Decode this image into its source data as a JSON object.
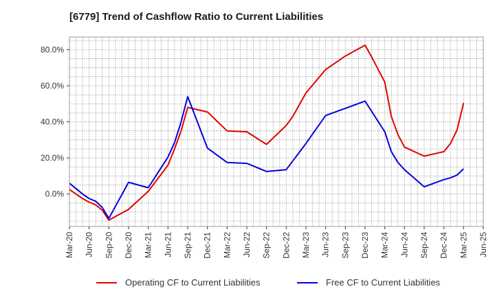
{
  "chart_data": {
    "type": "line",
    "title": "[6779]  Trend of Cashflow Ratio to Current Liabilities",
    "xlabel": "",
    "ylabel": "",
    "x_tick_labels": [
      "Mar-20",
      "Jun-20",
      "Sep-20",
      "Dec-20",
      "Mar-21",
      "Jun-21",
      "Sep-21",
      "Dec-21",
      "Mar-22",
      "Jun-22",
      "Sep-22",
      "Dec-22",
      "Mar-23",
      "Jun-23",
      "Sep-23",
      "Dec-23",
      "Mar-24",
      "Jun-24",
      "Sep-24",
      "Dec-24",
      "Mar-25",
      "Jun-25"
    ],
    "x_range_months": [
      "2020-03",
      "2025-06"
    ],
    "y_ticks": [
      0,
      20,
      40,
      60,
      80
    ],
    "y_tick_labels": [
      "0.0%",
      "20.0%",
      "40.0%",
      "60.0%",
      "80.0%"
    ],
    "ylim": [
      -18,
      87
    ],
    "grid": true,
    "legend_position": "bottom",
    "series": [
      {
        "name": "Operating CF to Current Liabilities",
        "color": "#e00000",
        "points": [
          [
            "2020-03",
            2.5
          ],
          [
            "2020-04",
            0
          ],
          [
            "2020-05",
            -2.5
          ],
          [
            "2020-06",
            -4.5
          ],
          [
            "2020-07",
            -6
          ],
          [
            "2020-08",
            -9
          ],
          [
            "2020-09",
            -14.5
          ],
          [
            "2020-12",
            -8.5
          ],
          [
            "2021-03",
            1.5
          ],
          [
            "2021-06",
            16
          ],
          [
            "2021-07",
            25
          ],
          [
            "2021-08",
            35
          ],
          [
            "2021-09",
            48
          ],
          [
            "2021-12",
            45.5
          ],
          [
            "2022-03",
            35
          ],
          [
            "2022-06",
            34.5
          ],
          [
            "2022-09",
            27.5
          ],
          [
            "2022-12",
            38
          ],
          [
            "2023-01",
            43
          ],
          [
            "2023-03",
            56
          ],
          [
            "2023-06",
            69
          ],
          [
            "2023-09",
            76.5
          ],
          [
            "2023-12",
            82.5
          ],
          [
            "2024-01",
            76
          ],
          [
            "2024-03",
            62
          ],
          [
            "2024-04",
            43
          ],
          [
            "2024-05",
            33
          ],
          [
            "2024-06",
            26
          ],
          [
            "2024-09",
            21
          ],
          [
            "2024-12",
            23.5
          ],
          [
            "2025-01",
            28
          ],
          [
            "2025-02",
            35.5
          ],
          [
            "2025-03",
            50.5
          ]
        ]
      },
      {
        "name": "Free CF to Current Liabilities",
        "color": "#0000e0",
        "points": [
          [
            "2020-03",
            6
          ],
          [
            "2020-04",
            3
          ],
          [
            "2020-05",
            0
          ],
          [
            "2020-06",
            -2.5
          ],
          [
            "2020-07",
            -4
          ],
          [
            "2020-08",
            -7.5
          ],
          [
            "2020-09",
            -13.5
          ],
          [
            "2020-12",
            6.5
          ],
          [
            "2021-03",
            3.5
          ],
          [
            "2021-06",
            20.5
          ],
          [
            "2021-07",
            28.5
          ],
          [
            "2021-08",
            40
          ],
          [
            "2021-09",
            54
          ],
          [
            "2021-12",
            25.5
          ],
          [
            "2022-03",
            17.5
          ],
          [
            "2022-06",
            17
          ],
          [
            "2022-09",
            12.5
          ],
          [
            "2022-12",
            13.5
          ],
          [
            "2023-03",
            28
          ],
          [
            "2023-06",
            43.5
          ],
          [
            "2023-09",
            47.5
          ],
          [
            "2023-12",
            51.5
          ],
          [
            "2024-03",
            34.5
          ],
          [
            "2024-04",
            23.5
          ],
          [
            "2024-05",
            17.5
          ],
          [
            "2024-06",
            13.5
          ],
          [
            "2024-09",
            4
          ],
          [
            "2024-12",
            8
          ],
          [
            "2025-01",
            9
          ],
          [
            "2025-02",
            10.5
          ],
          [
            "2025-03",
            14
          ]
        ]
      }
    ]
  }
}
